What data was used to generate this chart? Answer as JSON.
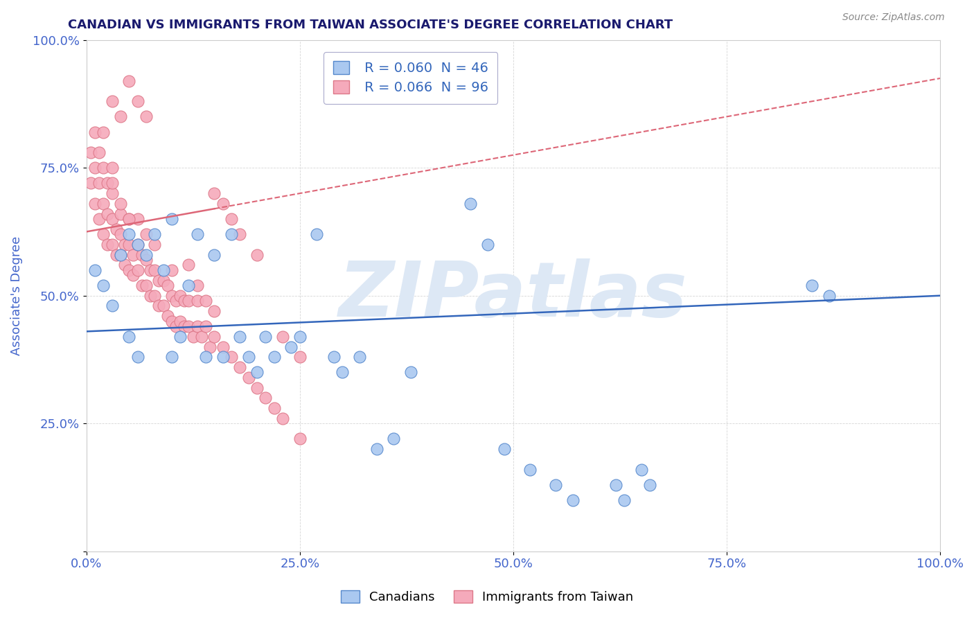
{
  "title": "CANADIAN VS IMMIGRANTS FROM TAIWAN ASSOCIATE'S DEGREE CORRELATION CHART",
  "source_text": "Source: ZipAtlas.com",
  "xlabel": "",
  "ylabel": "Associate's Degree",
  "xlim": [
    0.0,
    1.0
  ],
  "ylim": [
    0.0,
    1.0
  ],
  "xticks": [
    0.0,
    0.25,
    0.5,
    0.75,
    1.0
  ],
  "yticks": [
    0.0,
    0.25,
    0.5,
    0.75,
    1.0
  ],
  "xticklabels": [
    "0.0%",
    "25.0%",
    "50.0%",
    "75.0%",
    "100.0%"
  ],
  "yticklabels": [
    "",
    "25.0%",
    "50.0%",
    "75.0%",
    "100.0%"
  ],
  "blue_R": 0.06,
  "blue_N": 46,
  "pink_R": 0.066,
  "pink_N": 96,
  "blue_color": "#aac8f0",
  "pink_color": "#f5aabb",
  "blue_edge_color": "#5588cc",
  "pink_edge_color": "#dd7788",
  "blue_line_color": "#3366bb",
  "pink_line_color": "#dd6677",
  "title_color": "#1a1a6e",
  "tick_color": "#4466cc",
  "watermark_color": "#dde8f5",
  "watermark_text": "ZIPatlas",
  "legend_label_blue": "Canadians",
  "legend_label_pink": "Immigrants from Taiwan",
  "blue_line_start_y": 0.43,
  "blue_line_end_y": 0.5,
  "pink_line_start_y": 0.625,
  "pink_line_end_y": 0.925,
  "pink_line_solid_end_x": 0.15,
  "blue_scatter_x": [
    0.01,
    0.02,
    0.03,
    0.04,
    0.05,
    0.05,
    0.06,
    0.06,
    0.07,
    0.08,
    0.09,
    0.1,
    0.1,
    0.11,
    0.12,
    0.13,
    0.14,
    0.15,
    0.16,
    0.17,
    0.18,
    0.19,
    0.2,
    0.21,
    0.22,
    0.24,
    0.25,
    0.27,
    0.29,
    0.3,
    0.32,
    0.34,
    0.36,
    0.38,
    0.45,
    0.47,
    0.49,
    0.52,
    0.55,
    0.57,
    0.62,
    0.63,
    0.65,
    0.66,
    0.85,
    0.87
  ],
  "blue_scatter_y": [
    0.55,
    0.52,
    0.48,
    0.58,
    0.62,
    0.42,
    0.6,
    0.38,
    0.58,
    0.62,
    0.55,
    0.65,
    0.38,
    0.42,
    0.52,
    0.62,
    0.38,
    0.58,
    0.38,
    0.62,
    0.42,
    0.38,
    0.35,
    0.42,
    0.38,
    0.4,
    0.42,
    0.62,
    0.38,
    0.35,
    0.38,
    0.2,
    0.22,
    0.35,
    0.68,
    0.6,
    0.2,
    0.16,
    0.13,
    0.1,
    0.13,
    0.1,
    0.16,
    0.13,
    0.52,
    0.5
  ],
  "pink_scatter_x": [
    0.005,
    0.005,
    0.01,
    0.01,
    0.01,
    0.015,
    0.015,
    0.015,
    0.02,
    0.02,
    0.02,
    0.02,
    0.025,
    0.025,
    0.025,
    0.03,
    0.03,
    0.03,
    0.03,
    0.035,
    0.035,
    0.04,
    0.04,
    0.04,
    0.045,
    0.045,
    0.05,
    0.05,
    0.05,
    0.055,
    0.055,
    0.06,
    0.06,
    0.06,
    0.065,
    0.065,
    0.07,
    0.07,
    0.07,
    0.075,
    0.075,
    0.08,
    0.08,
    0.08,
    0.085,
    0.085,
    0.09,
    0.09,
    0.095,
    0.095,
    0.1,
    0.1,
    0.1,
    0.105,
    0.105,
    0.11,
    0.11,
    0.115,
    0.115,
    0.12,
    0.12,
    0.125,
    0.13,
    0.13,
    0.135,
    0.14,
    0.14,
    0.145,
    0.15,
    0.15,
    0.16,
    0.17,
    0.18,
    0.19,
    0.2,
    0.21,
    0.22,
    0.23,
    0.25,
    0.03,
    0.04,
    0.05,
    0.06,
    0.07,
    0.15,
    0.16,
    0.17,
    0.18,
    0.2,
    0.23,
    0.25,
    0.03,
    0.04,
    0.05,
    0.12,
    0.13
  ],
  "pink_scatter_y": [
    0.72,
    0.78,
    0.68,
    0.75,
    0.82,
    0.65,
    0.72,
    0.78,
    0.62,
    0.68,
    0.75,
    0.82,
    0.6,
    0.66,
    0.72,
    0.6,
    0.65,
    0.7,
    0.75,
    0.58,
    0.63,
    0.58,
    0.62,
    0.66,
    0.56,
    0.6,
    0.55,
    0.6,
    0.65,
    0.54,
    0.58,
    0.55,
    0.6,
    0.65,
    0.52,
    0.58,
    0.52,
    0.57,
    0.62,
    0.5,
    0.55,
    0.5,
    0.55,
    0.6,
    0.48,
    0.53,
    0.48,
    0.53,
    0.46,
    0.52,
    0.45,
    0.5,
    0.55,
    0.44,
    0.49,
    0.45,
    0.5,
    0.44,
    0.49,
    0.44,
    0.49,
    0.42,
    0.44,
    0.49,
    0.42,
    0.44,
    0.49,
    0.4,
    0.42,
    0.47,
    0.4,
    0.38,
    0.36,
    0.34,
    0.32,
    0.3,
    0.28,
    0.26,
    0.22,
    0.88,
    0.85,
    0.92,
    0.88,
    0.85,
    0.7,
    0.68,
    0.65,
    0.62,
    0.58,
    0.42,
    0.38,
    0.72,
    0.68,
    0.65,
    0.56,
    0.52
  ]
}
